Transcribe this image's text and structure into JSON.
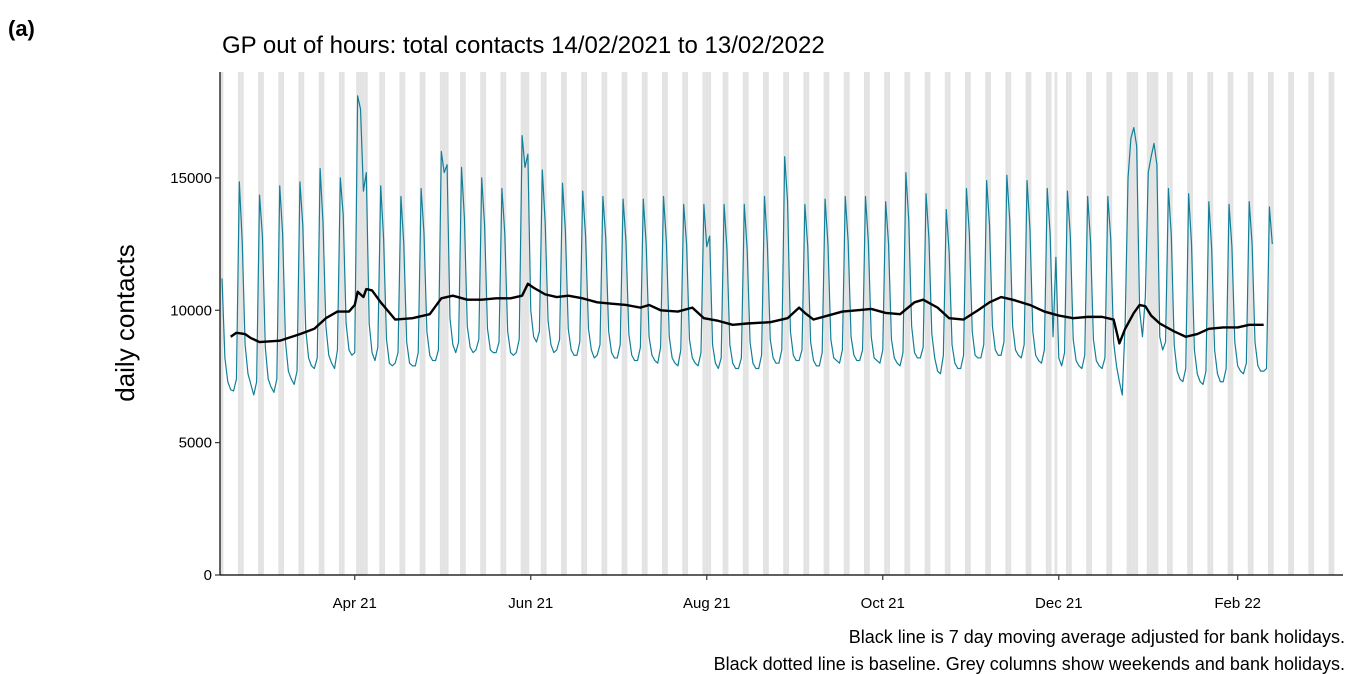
{
  "panel_label": "(a)",
  "chart_data": {
    "type": "line",
    "title": "GP out of hours: total contacts 14/02/2021 to 13/02/2022",
    "ylabel": "daily contacts",
    "notes": [
      "Black line is 7 day moving average adjusted for bank holidays.",
      "Black dotted line is baseline. Grey columns show weekends and bank holidays."
    ],
    "xlim": [
      -0.7,
      388.5
    ],
    "xticks": [
      {
        "value": 46,
        "label": "Apr 21"
      },
      {
        "value": 107,
        "label": "Jun 21"
      },
      {
        "value": 168,
        "label": "Aug 21"
      },
      {
        "value": 229,
        "label": "Oct 21"
      },
      {
        "value": 290,
        "label": "Dec 21"
      },
      {
        "value": 352,
        "label": "Feb 22"
      }
    ],
    "ylim": [
      0,
      19000
    ],
    "yticks": [
      0,
      5000,
      10000,
      15000
    ],
    "shaded_color": "#e3e3e3",
    "shaded": [
      0,
      6,
      7,
      13,
      14,
      20,
      21,
      27,
      28,
      34,
      35,
      41,
      42,
      47,
      48,
      49,
      50,
      55,
      56,
      62,
      63,
      69,
      70,
      76,
      77,
      78,
      83,
      84,
      90,
      91,
      97,
      98,
      104,
      105,
      106,
      111,
      112,
      118,
      119,
      125,
      126,
      132,
      133,
      139,
      140,
      146,
      147,
      153,
      154,
      160,
      161,
      167,
      168,
      169,
      174,
      175,
      181,
      182,
      188,
      189,
      195,
      196,
      202,
      203,
      209,
      210,
      216,
      217,
      223,
      224,
      230,
      231,
      237,
      238,
      244,
      245,
      251,
      252,
      258,
      259,
      265,
      266,
      272,
      273,
      279,
      280,
      286,
      287,
      289,
      293,
      294,
      300,
      301,
      307,
      308,
      314,
      315,
      316,
      317,
      321,
      322,
      323,
      324,
      328,
      329,
      335,
      336,
      342,
      343,
      349,
      350,
      356,
      357,
      363,
      364,
      370,
      371,
      377,
      378,
      384,
      385
    ],
    "x": [
      0,
      1,
      2,
      3,
      4,
      5,
      6,
      7,
      8,
      9,
      10,
      11,
      12,
      13,
      14,
      15,
      16,
      17,
      18,
      19,
      20,
      21,
      22,
      23,
      24,
      25,
      26,
      27,
      28,
      29,
      30,
      31,
      32,
      33,
      34,
      35,
      36,
      37,
      38,
      39,
      40,
      41,
      42,
      43,
      44,
      45,
      46,
      47,
      48,
      49,
      50,
      51,
      52,
      53,
      54,
      55,
      56,
      57,
      58,
      59,
      60,
      61,
      62,
      63,
      64,
      65,
      66,
      67,
      68,
      69,
      70,
      71,
      72,
      73,
      74,
      75,
      76,
      77,
      78,
      79,
      80,
      81,
      82,
      83,
      84,
      85,
      86,
      87,
      88,
      89,
      90,
      91,
      92,
      93,
      94,
      95,
      96,
      97,
      98,
      99,
      100,
      101,
      102,
      103,
      104,
      105,
      106,
      107,
      108,
      109,
      110,
      111,
      112,
      113,
      114,
      115,
      116,
      117,
      118,
      119,
      120,
      121,
      122,
      123,
      124,
      125,
      126,
      127,
      128,
      129,
      130,
      131,
      132,
      133,
      134,
      135,
      136,
      137,
      138,
      139,
      140,
      141,
      142,
      143,
      144,
      145,
      146,
      147,
      148,
      149,
      150,
      151,
      152,
      153,
      154,
      155,
      156,
      157,
      158,
      159,
      160,
      161,
      162,
      163,
      164,
      165,
      166,
      167,
      168,
      169,
      170,
      171,
      172,
      173,
      174,
      175,
      176,
      177,
      178,
      179,
      180,
      181,
      182,
      183,
      184,
      185,
      186,
      187,
      188,
      189,
      190,
      191,
      192,
      193,
      194,
      195,
      196,
      197,
      198,
      199,
      200,
      201,
      202,
      203,
      204,
      205,
      206,
      207,
      208,
      209,
      210,
      211,
      212,
      213,
      214,
      215,
      216,
      217,
      218,
      219,
      220,
      221,
      222,
      223,
      224,
      225,
      226,
      227,
      228,
      229,
      230,
      231,
      232,
      233,
      234,
      235,
      236,
      237,
      238,
      239,
      240,
      241,
      242,
      243,
      244,
      245,
      246,
      247,
      248,
      249,
      250,
      251,
      252,
      253,
      254,
      255,
      256,
      257,
      258,
      259,
      260,
      261,
      262,
      263,
      264,
      265,
      266,
      267,
      268,
      269,
      270,
      271,
      272,
      273,
      274,
      275,
      276,
      277,
      278,
      279,
      280,
      281,
      282,
      283,
      284,
      285,
      286,
      287,
      288,
      289,
      290,
      291,
      292,
      293,
      294,
      295,
      296,
      297,
      298,
      299,
      300,
      301,
      302,
      303,
      304,
      305,
      306,
      307,
      308,
      309,
      310,
      311,
      312,
      313,
      314,
      315,
      316,
      317,
      318,
      319,
      320,
      321,
      322,
      323,
      324,
      325,
      326,
      327,
      328,
      329,
      330,
      331,
      332,
      333,
      334,
      335,
      336,
      337,
      338,
      339,
      340,
      341,
      342,
      343,
      344,
      345,
      346,
      347,
      348,
      349,
      350,
      351,
      352,
      353,
      354,
      355,
      356,
      357,
      358,
      359,
      360,
      361,
      362,
      363,
      364
    ],
    "series": [
      {
        "color": "#137f98",
        "width": 1.2,
        "values": [
          11200,
          8200,
          7300,
          7000,
          6950,
          7400,
          14850,
          12600,
          8700,
          7600,
          7200,
          6800,
          7300,
          14350,
          12800,
          8600,
          7400,
          7100,
          6900,
          7400,
          14700,
          12900,
          8800,
          7700,
          7400,
          7200,
          7700,
          14850,
          13200,
          9300,
          8200,
          7900,
          7800,
          8200,
          15350,
          13300,
          9400,
          8300,
          8000,
          7800,
          8500,
          15000,
          13600,
          9500,
          8500,
          8300,
          8400,
          18100,
          17600,
          14500,
          15200,
          9500,
          8400,
          8100,
          8600,
          14700,
          12700,
          8900,
          8000,
          7900,
          8000,
          8400,
          14300,
          12500,
          8800,
          8000,
          7900,
          7900,
          8400,
          14600,
          12900,
          9200,
          8300,
          8100,
          8100,
          8500,
          16000,
          15200,
          15500,
          9700,
          8700,
          8400,
          8800,
          15400,
          13500,
          9400,
          8600,
          8400,
          8500,
          8900,
          15000,
          13200,
          9300,
          8500,
          8400,
          8400,
          8800,
          14600,
          12900,
          9200,
          8400,
          8300,
          8400,
          8900,
          16600,
          15400,
          15900,
          10000,
          9000,
          8800,
          9200,
          15300,
          13300,
          9600,
          8700,
          8400,
          8500,
          8900,
          14800,
          13000,
          9300,
          8500,
          8300,
          8300,
          8800,
          14500,
          12800,
          9300,
          8500,
          8200,
          8300,
          8700,
          14300,
          12700,
          9200,
          8400,
          8200,
          8200,
          8700,
          14200,
          12600,
          9100,
          8300,
          8100,
          8100,
          8600,
          14200,
          12500,
          9000,
          8300,
          8100,
          8000,
          8600,
          14300,
          12600,
          9000,
          8200,
          8000,
          7900,
          8500,
          14000,
          12500,
          8900,
          8200,
          8000,
          7900,
          8400,
          14000,
          12400,
          12800,
          8700,
          8000,
          7800,
          8200,
          14000,
          12300,
          8700,
          8000,
          7800,
          7800,
          8200,
          14000,
          12300,
          8800,
          8000,
          7800,
          7800,
          8300,
          14300,
          12500,
          8900,
          8200,
          8000,
          8000,
          8500,
          15800,
          14100,
          9200,
          8300,
          8100,
          8100,
          8500,
          14000,
          12400,
          8800,
          8100,
          7900,
          7900,
          8400,
          14200,
          12500,
          8900,
          8200,
          8100,
          8000,
          8500,
          14300,
          12600,
          9000,
          8300,
          8100,
          8100,
          8500,
          14300,
          12600,
          9000,
          8200,
          8100,
          8000,
          8500,
          14100,
          12500,
          8900,
          8200,
          8000,
          7900,
          8400,
          15200,
          13400,
          9400,
          8400,
          8200,
          8200,
          8600,
          14400,
          12700,
          9100,
          8200,
          7700,
          7600,
          8300,
          13800,
          12200,
          8700,
          8000,
          7800,
          7800,
          8300,
          14600,
          12900,
          9200,
          8300,
          8200,
          8200,
          8700,
          14900,
          13200,
          9400,
          8500,
          8300,
          8300,
          8800,
          15100,
          13400,
          9400,
          8500,
          8300,
          8200,
          8700,
          14900,
          13100,
          9200,
          8300,
          8100,
          8000,
          8500,
          14600,
          12900,
          9000,
          12000,
          8200,
          7900,
          8400,
          14500,
          12800,
          8900,
          8100,
          7900,
          7800,
          8300,
          14300,
          12600,
          8900,
          8100,
          7900,
          7800,
          8200,
          14300,
          12700,
          8800,
          7900,
          7300,
          6800,
          9500,
          15000,
          16500,
          16900,
          16200,
          10000,
          9000,
          10500,
          15200,
          15800,
          16300,
          15500,
          9000,
          8500,
          8800,
          14600,
          12800,
          8700,
          7700,
          7400,
          7300,
          7800,
          14400,
          12500,
          8500,
          7600,
          7300,
          7200,
          7700,
          14100,
          12300,
          8500,
          7600,
          7300,
          7300,
          7800,
          14000,
          12400,
          8800,
          7900,
          7700,
          7600,
          8000,
          14100,
          12500,
          8800,
          7900,
          7700,
          7700,
          7800,
          13900,
          12500
        ]
      },
      {
        "color": "#000000",
        "width": 2.4,
        "x": [
          3,
          5,
          8,
          10,
          13,
          20,
          27,
          32,
          36,
          40,
          44,
          46,
          47,
          49,
          50,
          52,
          55,
          60,
          66,
          72,
          76,
          80,
          85,
          90,
          95,
          100,
          104,
          106,
          108,
          112,
          116,
          120,
          125,
          130,
          135,
          140,
          145,
          148,
          152,
          158,
          163,
          167,
          172,
          177,
          182,
          190,
          196,
          200,
          202,
          205,
          210,
          215,
          220,
          225,
          230,
          235,
          240,
          243,
          248,
          252,
          257,
          262,
          266,
          270,
          274,
          280,
          285,
          290,
          295,
          300,
          305,
          309,
          311,
          313,
          316,
          318,
          320,
          322,
          325,
          330,
          334,
          338,
          342,
          347,
          352,
          356,
          361
        ],
        "values": [
          9000,
          9150,
          9100,
          8950,
          8800,
          8850,
          9100,
          9300,
          9700,
          9950,
          9950,
          10200,
          10700,
          10500,
          10800,
          10750,
          10300,
          9650,
          9700,
          9850,
          10450,
          10550,
          10400,
          10400,
          10450,
          10450,
          10550,
          11000,
          10850,
          10600,
          10500,
          10550,
          10450,
          10300,
          10250,
          10200,
          10100,
          10200,
          10000,
          9950,
          10100,
          9700,
          9600,
          9450,
          9500,
          9550,
          9700,
          10100,
          9900,
          9650,
          9800,
          9950,
          10000,
          10050,
          9900,
          9850,
          10300,
          10400,
          10100,
          9700,
          9650,
          10000,
          10300,
          10500,
          10400,
          10200,
          9950,
          9800,
          9700,
          9750,
          9750,
          9650,
          8750,
          9300,
          9900,
          10200,
          10150,
          9800,
          9500,
          9200,
          9000,
          9100,
          9300,
          9350,
          9350,
          9450,
          9450
        ]
      }
    ]
  }
}
